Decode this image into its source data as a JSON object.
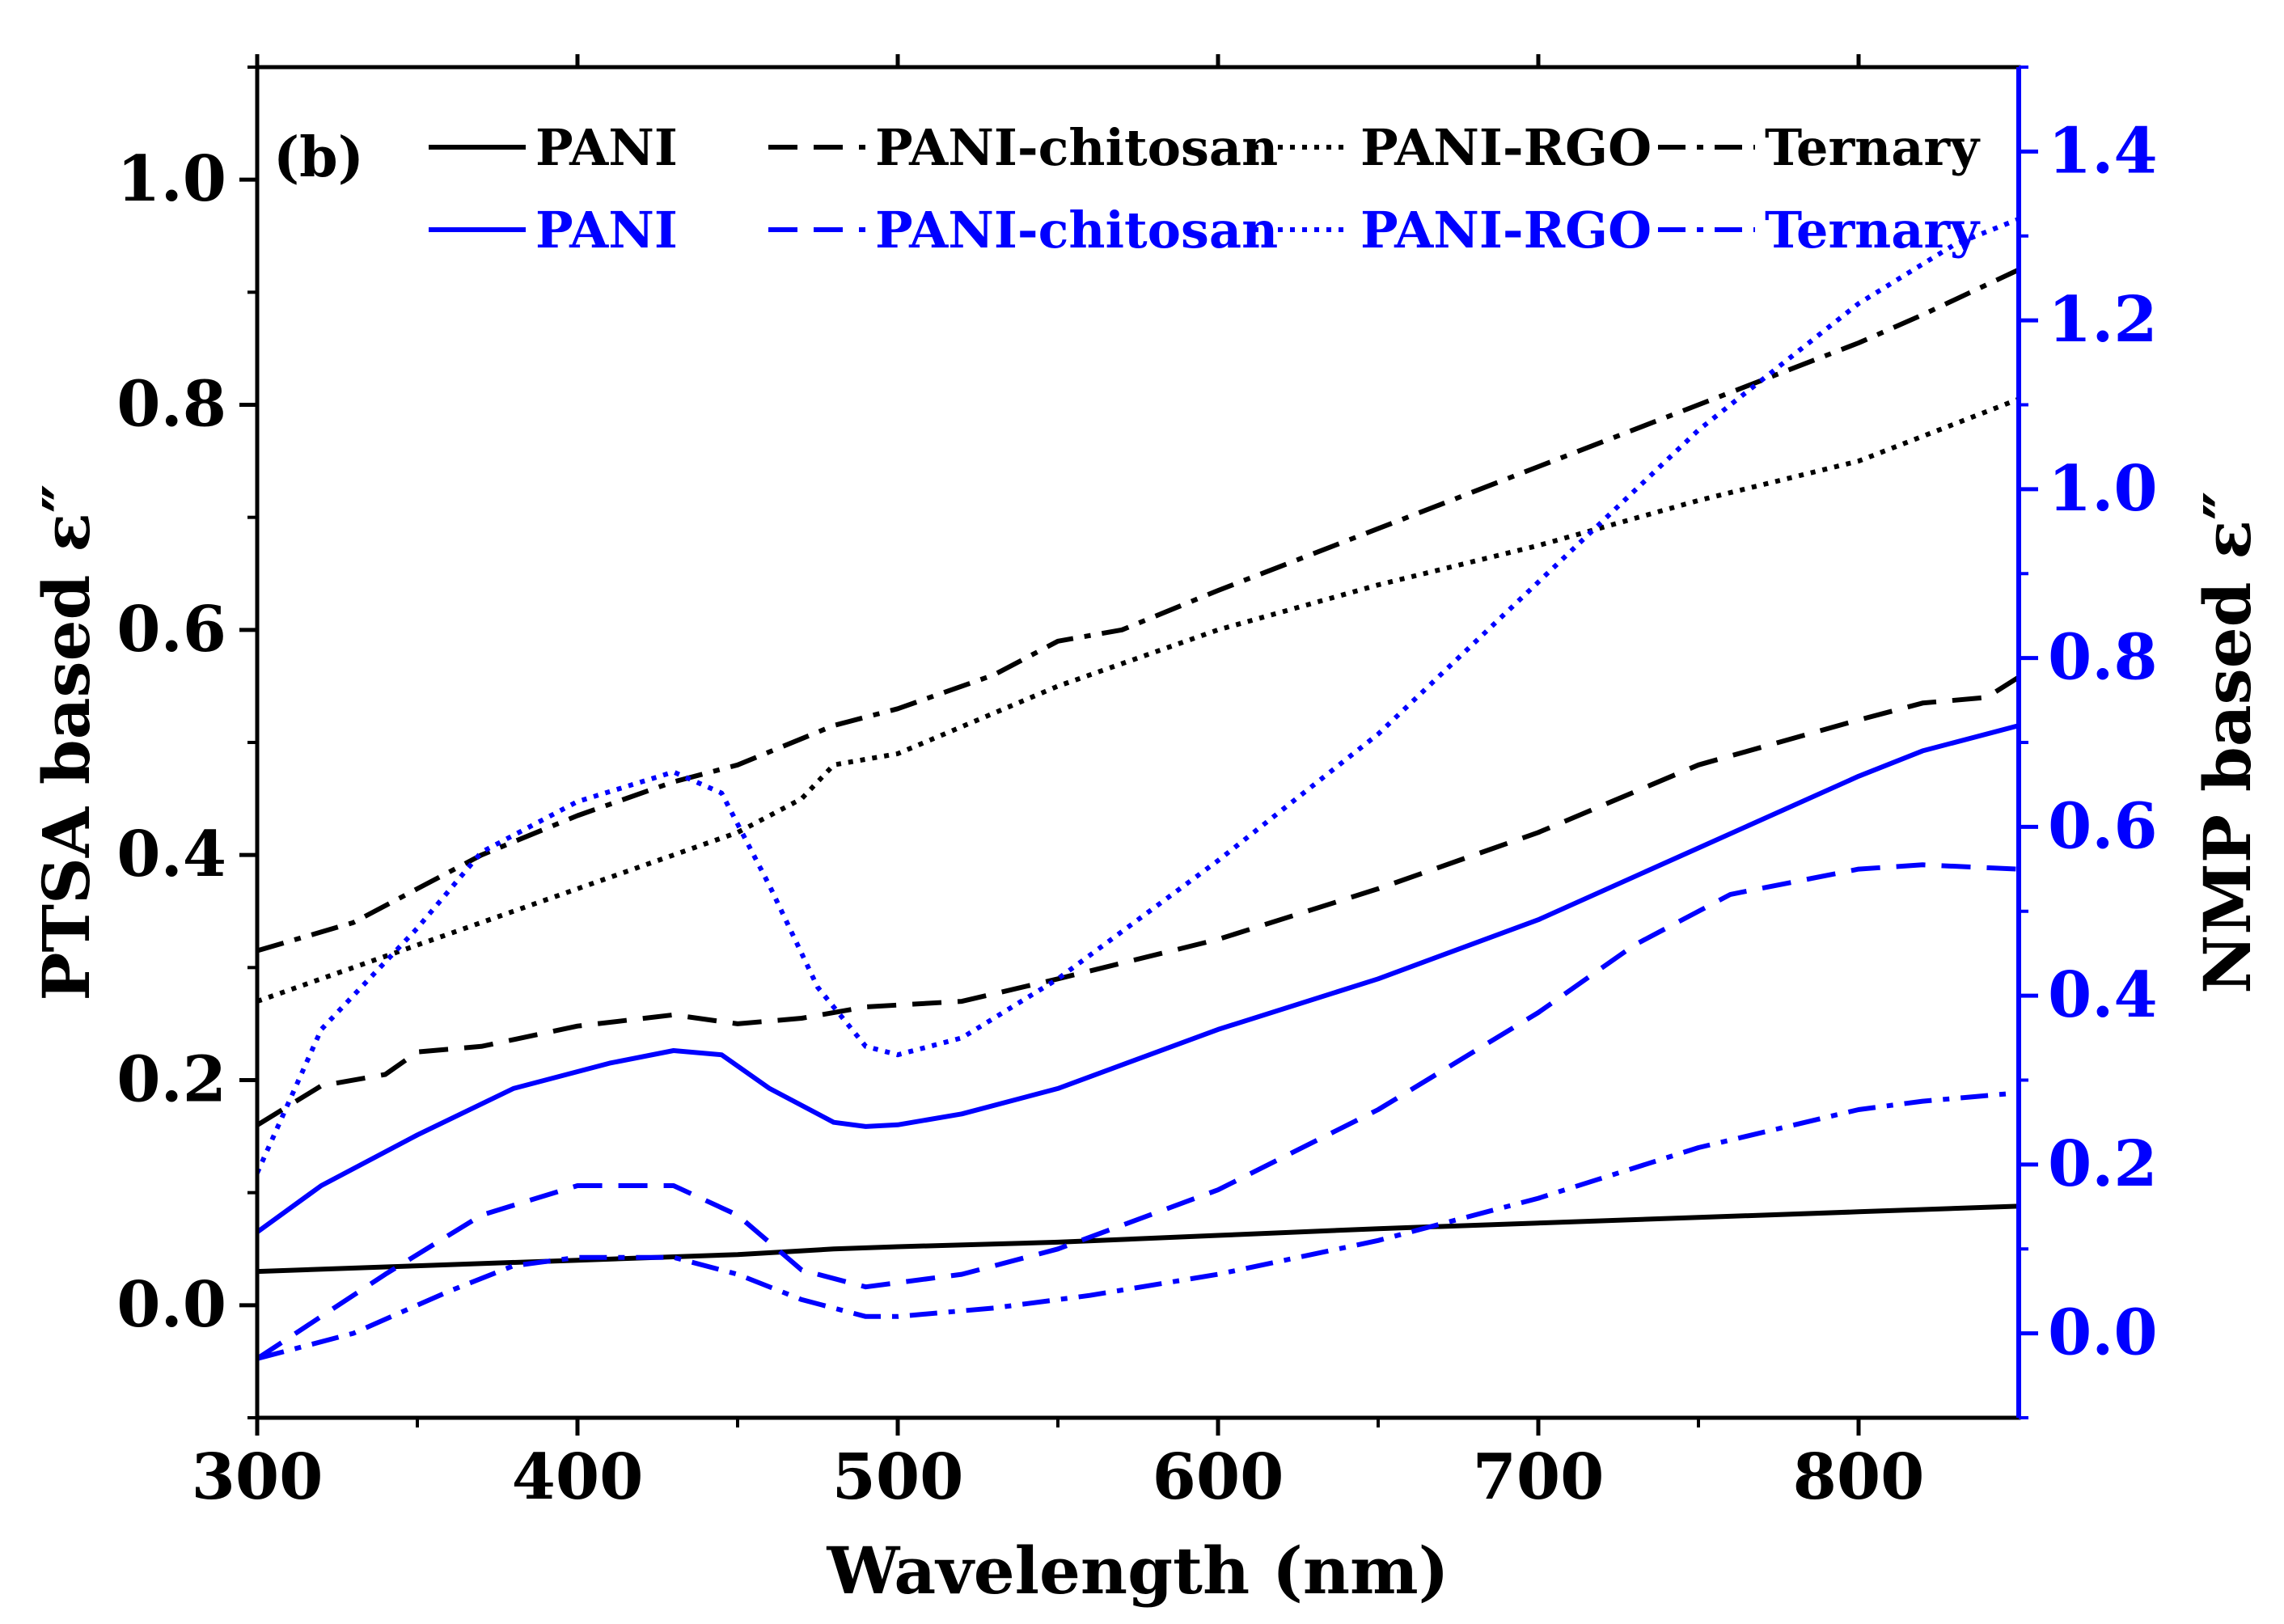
{
  "chart_data": {
    "type": "line",
    "panel_label": "(b)",
    "xlabel": "Wavelength (nm)",
    "ylabel_left": "PTSA based ε″",
    "ylabel_right": "NMP based ε″",
    "xlim": [
      300,
      850
    ],
    "ylim_left": [
      -0.1,
      1.1
    ],
    "ylim_right": [
      -0.1,
      1.5
    ],
    "x_ticks": [
      300,
      400,
      500,
      600,
      700,
      800
    ],
    "x_tick_labels": [
      "300",
      "400",
      "500",
      "600",
      "700",
      "800"
    ],
    "y_left_ticks": [
      0.0,
      0.2,
      0.4,
      0.6,
      0.8,
      1.0
    ],
    "y_left_tick_labels": [
      "0.0",
      "0.2",
      "0.4",
      "0.6",
      "0.8",
      "1.0"
    ],
    "y_right_ticks": [
      0.0,
      0.2,
      0.4,
      0.6,
      0.8,
      1.0,
      1.2,
      1.4
    ],
    "y_right_tick_labels": [
      "0.0",
      "0.2",
      "0.4",
      "0.6",
      "0.8",
      "1.0",
      "1.2",
      "1.4"
    ],
    "colors": {
      "ptsa": "#000000",
      "nmp": "#0000ff",
      "right_axis": "#0000ff"
    },
    "legend_position": "top",
    "series": [
      {
        "name": "PANI",
        "axis": "left",
        "style": "solid",
        "color": "#000000",
        "x": [
          300,
          350,
          400,
          450,
          480,
          500,
          550,
          600,
          650,
          700,
          750,
          800,
          850
        ],
        "y": [
          0.03,
          0.035,
          0.04,
          0.045,
          0.05,
          0.052,
          0.056,
          0.062,
          0.068,
          0.073,
          0.078,
          0.083,
          0.088
        ]
      },
      {
        "name": "PANI-chitosan",
        "axis": "left",
        "style": "dash",
        "color": "#000000",
        "x": [
          300,
          320,
          340,
          350,
          370,
          400,
          430,
          450,
          470,
          490,
          520,
          550,
          600,
          650,
          700,
          750,
          800,
          820,
          840,
          850
        ],
        "y": [
          0.16,
          0.195,
          0.205,
          0.225,
          0.23,
          0.248,
          0.258,
          0.25,
          0.255,
          0.265,
          0.27,
          0.29,
          0.325,
          0.37,
          0.42,
          0.48,
          0.52,
          0.535,
          0.54,
          0.558
        ]
      },
      {
        "name": "PANI-RGO",
        "axis": "left",
        "style": "dot",
        "color": "#000000",
        "x": [
          300,
          330,
          350,
          400,
          450,
          470,
          480,
          500,
          550,
          600,
          650,
          700,
          750,
          800,
          850
        ],
        "y": [
          0.27,
          0.3,
          0.32,
          0.37,
          0.42,
          0.45,
          0.48,
          0.49,
          0.55,
          0.6,
          0.64,
          0.675,
          0.715,
          0.75,
          0.805
        ]
      },
      {
        "name": "Ternary",
        "axis": "left",
        "style": "dashdot",
        "color": "#000000",
        "x": [
          300,
          330,
          350,
          370,
          400,
          430,
          450,
          480,
          500,
          530,
          550,
          570,
          600,
          650,
          700,
          750,
          800,
          820,
          850
        ],
        "y": [
          0.315,
          0.34,
          0.37,
          0.4,
          0.435,
          0.465,
          0.48,
          0.515,
          0.53,
          0.56,
          0.59,
          0.6,
          0.635,
          0.69,
          0.745,
          0.8,
          0.855,
          0.88,
          0.92
        ]
      },
      {
        "name": "PANI",
        "axis": "right",
        "style": "solid",
        "color": "#0000ff",
        "x": [
          300,
          320,
          350,
          380,
          410,
          430,
          445,
          460,
          480,
          490,
          500,
          520,
          550,
          600,
          650,
          700,
          750,
          800,
          820,
          850
        ],
        "y": [
          0.12,
          0.175,
          0.235,
          0.29,
          0.32,
          0.335,
          0.33,
          0.29,
          0.25,
          0.245,
          0.247,
          0.26,
          0.29,
          0.36,
          0.42,
          0.49,
          0.575,
          0.66,
          0.69,
          0.72
        ]
      },
      {
        "name": "PANI-chitosan",
        "axis": "right",
        "style": "dash",
        "color": "#0000ff",
        "x": [
          300,
          340,
          370,
          400,
          430,
          450,
          470,
          490,
          520,
          550,
          600,
          650,
          700,
          730,
          760,
          800,
          820,
          850
        ],
        "y": [
          -0.03,
          0.07,
          0.14,
          0.175,
          0.175,
          0.14,
          0.075,
          0.055,
          0.07,
          0.1,
          0.17,
          0.265,
          0.38,
          0.46,
          0.52,
          0.55,
          0.555,
          0.55
        ]
      },
      {
        "name": "PANI-RGO",
        "axis": "right",
        "style": "dot",
        "color": "#0000ff",
        "x": [
          300,
          320,
          350,
          370,
          400,
          430,
          445,
          460,
          475,
          490,
          500,
          520,
          550,
          600,
          650,
          700,
          750,
          800,
          830,
          850
        ],
        "y": [
          0.19,
          0.36,
          0.48,
          0.57,
          0.63,
          0.665,
          0.64,
          0.53,
          0.41,
          0.34,
          0.33,
          0.35,
          0.42,
          0.56,
          0.71,
          0.89,
          1.07,
          1.22,
          1.29,
          1.32
        ]
      },
      {
        "name": "Ternary",
        "axis": "right",
        "style": "dashdot",
        "color": "#0000ff",
        "x": [
          300,
          330,
          360,
          380,
          400,
          430,
          450,
          470,
          490,
          500,
          530,
          560,
          600,
          650,
          700,
          750,
          800,
          820,
          850
        ],
        "y": [
          -0.03,
          0.0,
          0.05,
          0.08,
          0.09,
          0.09,
          0.07,
          0.04,
          0.02,
          0.02,
          0.03,
          0.045,
          0.07,
          0.11,
          0.16,
          0.22,
          0.265,
          0.275,
          0.285
        ]
      }
    ]
  }
}
